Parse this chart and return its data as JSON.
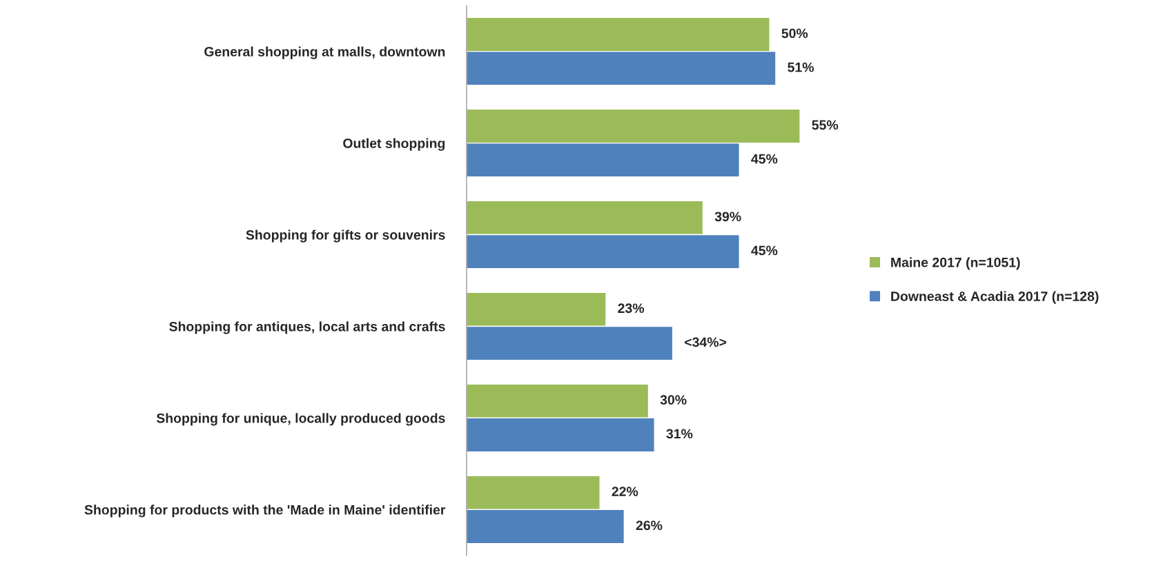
{
  "chart_data": {
    "type": "bar",
    "orientation": "horizontal",
    "categories": [
      "General shopping at malls, downtown",
      "Outlet shopping",
      "Shopping for gifts or souvenirs",
      "Shopping for antiques, local arts and crafts",
      "Shopping for unique, locally produced goods",
      "Shopping for products with the 'Made in Maine' identifier"
    ],
    "series": [
      {
        "name": "Maine 2017 (n=1051)",
        "color": "#9bbb59",
        "values": [
          50,
          55,
          39,
          23,
          30,
          22
        ],
        "value_labels": [
          "50%",
          "55%",
          "39%",
          "23%",
          "30%",
          "22%"
        ]
      },
      {
        "name": "Downeast & Acadia 2017 (n=128)",
        "color": "#4f81bd",
        "values": [
          51,
          45,
          45,
          34,
          31,
          26
        ],
        "value_labels": [
          "51%",
          "45%",
          "45%",
          "<34%>",
          "31%",
          "26%"
        ]
      }
    ],
    "legend": "right",
    "grid": false
  }
}
